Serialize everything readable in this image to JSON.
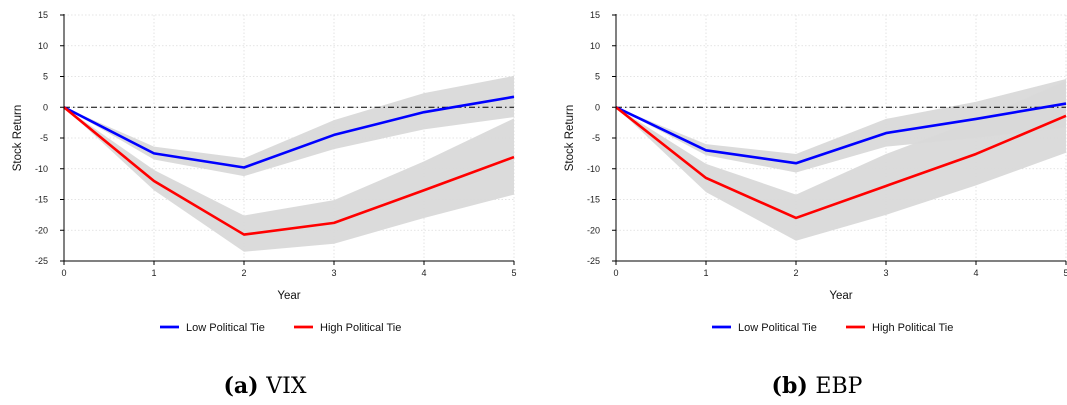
{
  "charts": [
    {
      "caption_label": "(a)",
      "caption_text": "VIX",
      "chart_data": {
        "type": "line",
        "x": [
          0,
          1,
          2,
          3,
          4,
          5
        ],
        "xlabel": "Year",
        "ylabel": "Stock Return",
        "xlim": [
          0,
          5
        ],
        "ylim": [
          -25,
          15
        ],
        "yticks": [
          15,
          10,
          5,
          0,
          -5,
          -10,
          -15,
          -20,
          -25
        ],
        "xticks": [
          0,
          1,
          2,
          3,
          4,
          5
        ],
        "grid": true,
        "reference_line": 0,
        "legend_position": "bottom",
        "series": [
          {
            "name": "Low Political Tie",
            "color": "#0000ff",
            "values": [
              0,
              -7.5,
              -9.8,
              -4.5,
              -0.8,
              1.7
            ],
            "ci_low": [
              0,
              -8.5,
              -11.2,
              -6.8,
              -3.6,
              -1.6
            ],
            "ci_high": [
              0,
              -6.4,
              -8.3,
              -2.1,
              2.3,
              5.1
            ]
          },
          {
            "name": "High Political Tie",
            "color": "#ff0000",
            "values": [
              0,
              -12.0,
              -20.7,
              -18.8,
              -13.5,
              -8.1
            ],
            "ci_low": [
              0,
              -13.5,
              -23.5,
              -22.2,
              -18.0,
              -14.2
            ],
            "ci_high": [
              0,
              -10.2,
              -17.6,
              -15.1,
              -8.8,
              -1.8
            ]
          }
        ]
      }
    },
    {
      "caption_label": "(b)",
      "caption_text": "EBP",
      "chart_data": {
        "type": "line",
        "x": [
          0,
          1,
          2,
          3,
          4,
          5
        ],
        "xlabel": "Year",
        "ylabel": "Stock Return",
        "xlim": [
          0,
          5
        ],
        "ylim": [
          -25,
          15
        ],
        "yticks": [
          15,
          10,
          5,
          0,
          -5,
          -10,
          -15,
          -20,
          -25
        ],
        "xticks": [
          0,
          1,
          2,
          3,
          4,
          5
        ],
        "grid": true,
        "reference_line": 0,
        "legend_position": "bottom",
        "series": [
          {
            "name": "Low Political Tie",
            "color": "#0000ff",
            "values": [
              0,
              -7.0,
              -9.1,
              -4.2,
              -1.9,
              0.6
            ],
            "ci_low": [
              0,
              -7.8,
              -10.6,
              -6.4,
              -5.0,
              -3.3
            ],
            "ci_high": [
              0,
              -6.0,
              -7.6,
              -1.9,
              0.9,
              4.6
            ]
          },
          {
            "name": "High Political Tie",
            "color": "#ff0000",
            "values": [
              0,
              -11.5,
              -18.0,
              -12.8,
              -7.6,
              -1.4
            ],
            "ci_low": [
              0,
              -13.8,
              -21.7,
              -17.5,
              -12.7,
              -7.4
            ],
            "ci_high": [
              0,
              -9.2,
              -14.2,
              -7.6,
              -2.1,
              4.3
            ]
          }
        ]
      }
    }
  ],
  "colors": {
    "band": "#d9d9d9",
    "grid": "#dcdcdc",
    "refline": "#000000"
  }
}
